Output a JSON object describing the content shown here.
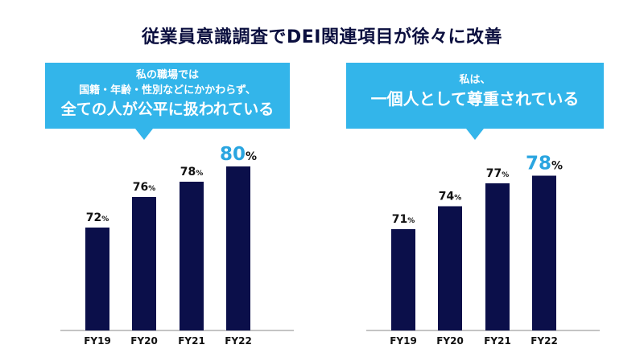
{
  "title": "従業員意識調査でDEI関連項目が徐々に改善",
  "colors": {
    "bar": "#0b0f4a",
    "callout": "#33b5ea",
    "highlight": "#2aa5e0"
  },
  "panels": [
    {
      "callout": {
        "line1": "私の職場では",
        "line2": "国籍・年齢・性別などにかかわらず、",
        "line3": "全ての人が公平に扱われている"
      }
    },
    {
      "callout": {
        "line1": "私は、",
        "line2": "",
        "line3": "一個人として尊重されている"
      }
    }
  ],
  "chart_data": [
    {
      "type": "bar",
      "categories": [
        "FY19",
        "FY20",
        "FY21",
        "FY22"
      ],
      "values": [
        72,
        76,
        78,
        80
      ],
      "unit": "%",
      "highlight_index": 3,
      "title": "私の職場では 国籍・年齢・性別などにかかわらず、全ての人が公平に扱われている",
      "grid": false
    },
    {
      "type": "bar",
      "categories": [
        "FY19",
        "FY20",
        "FY21",
        "FY22"
      ],
      "values": [
        71,
        74,
        77,
        78
      ],
      "unit": "%",
      "highlight_index": 3,
      "title": "私は、一個人として尊重されている",
      "grid": false
    }
  ]
}
